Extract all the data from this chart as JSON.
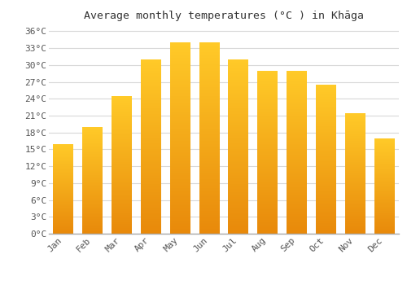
{
  "title": "Average monthly temperatures (°C ) in Khāga",
  "months": [
    "Jan",
    "Feb",
    "Mar",
    "Apr",
    "May",
    "Jun",
    "Jul",
    "Aug",
    "Sep",
    "Oct",
    "Nov",
    "Dec"
  ],
  "temperatures": [
    16.0,
    19.0,
    24.5,
    31.0,
    34.0,
    34.0,
    31.0,
    29.0,
    29.0,
    26.5,
    21.5,
    17.0
  ],
  "yticks": [
    0,
    3,
    6,
    9,
    12,
    15,
    18,
    21,
    24,
    27,
    30,
    33,
    36
  ],
  "ytick_labels": [
    "0°C",
    "3°C",
    "6°C",
    "9°C",
    "12°C",
    "15°C",
    "18°C",
    "21°C",
    "24°C",
    "27°C",
    "30°C",
    "33°C",
    "36°C"
  ],
  "ylim": [
    0,
    37
  ],
  "bar_color_bottom": "#E8890A",
  "bar_color_top": "#FFCA28",
  "background_color": "#ffffff",
  "grid_color": "#d8d8d8",
  "title_fontsize": 9.5,
  "tick_fontsize": 8,
  "font_family": "monospace"
}
